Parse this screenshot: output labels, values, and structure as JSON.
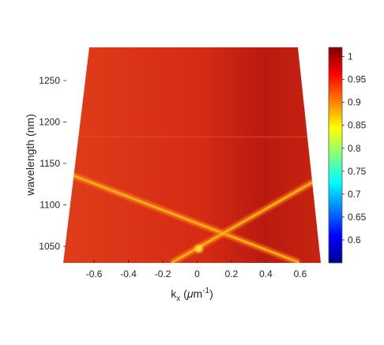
{
  "chart_data": {
    "type": "heatmap",
    "title": "",
    "xlabel": "k",
    "xlabel_sub": "x",
    "xlabel_unit_open": " (",
    "xlabel_unit_mu": "μ",
    "xlabel_unit_m": "m",
    "xlabel_unit_exp": "-1",
    "xlabel_unit_close": ")",
    "ylabel": "wavelength (nm)",
    "xlim": [
      -0.78,
      0.72
    ],
    "ylim": [
      1030,
      1290
    ],
    "xticks": [
      "-0.6",
      "-0.4",
      "-0.2",
      "0",
      "0.2",
      "0.4",
      "0.6"
    ],
    "xtick_values": [
      -0.6,
      -0.4,
      -0.2,
      0,
      0.2,
      0.4,
      0.6
    ],
    "yticks": [
      "1050",
      "1100",
      "1150",
      "1200",
      "1250"
    ],
    "ytick_values": [
      1050,
      1100,
      1150,
      1200,
      1250
    ],
    "colorbar": {
      "colormap": "jet",
      "range": [
        0.55,
        1.02
      ],
      "ticks": [
        "0.6",
        "0.65",
        "0.7",
        "0.75",
        "0.8",
        "0.85",
        "0.9",
        "0.95",
        "1"
      ],
      "tick_values": [
        0.6,
        0.65,
        0.7,
        0.75,
        0.8,
        0.85,
        0.9,
        0.95,
        1.0
      ]
    },
    "background_value": 0.96,
    "features": [
      {
        "kind": "band",
        "from": [
          -0.78,
          1140
        ],
        "to": [
          0.6,
          1030
        ],
        "value": 0.87
      },
      {
        "kind": "band",
        "from": [
          -0.15,
          1030
        ],
        "to": [
          0.72,
          1133
        ],
        "value": 0.87
      },
      {
        "kind": "band",
        "from": [
          -0.78,
          1182
        ],
        "to": [
          0.72,
          1182
        ],
        "value": 0.93
      },
      {
        "kind": "crossing",
        "at": [
          0.01,
          1047
        ],
        "value": 0.83
      }
    ],
    "grid": false
  }
}
